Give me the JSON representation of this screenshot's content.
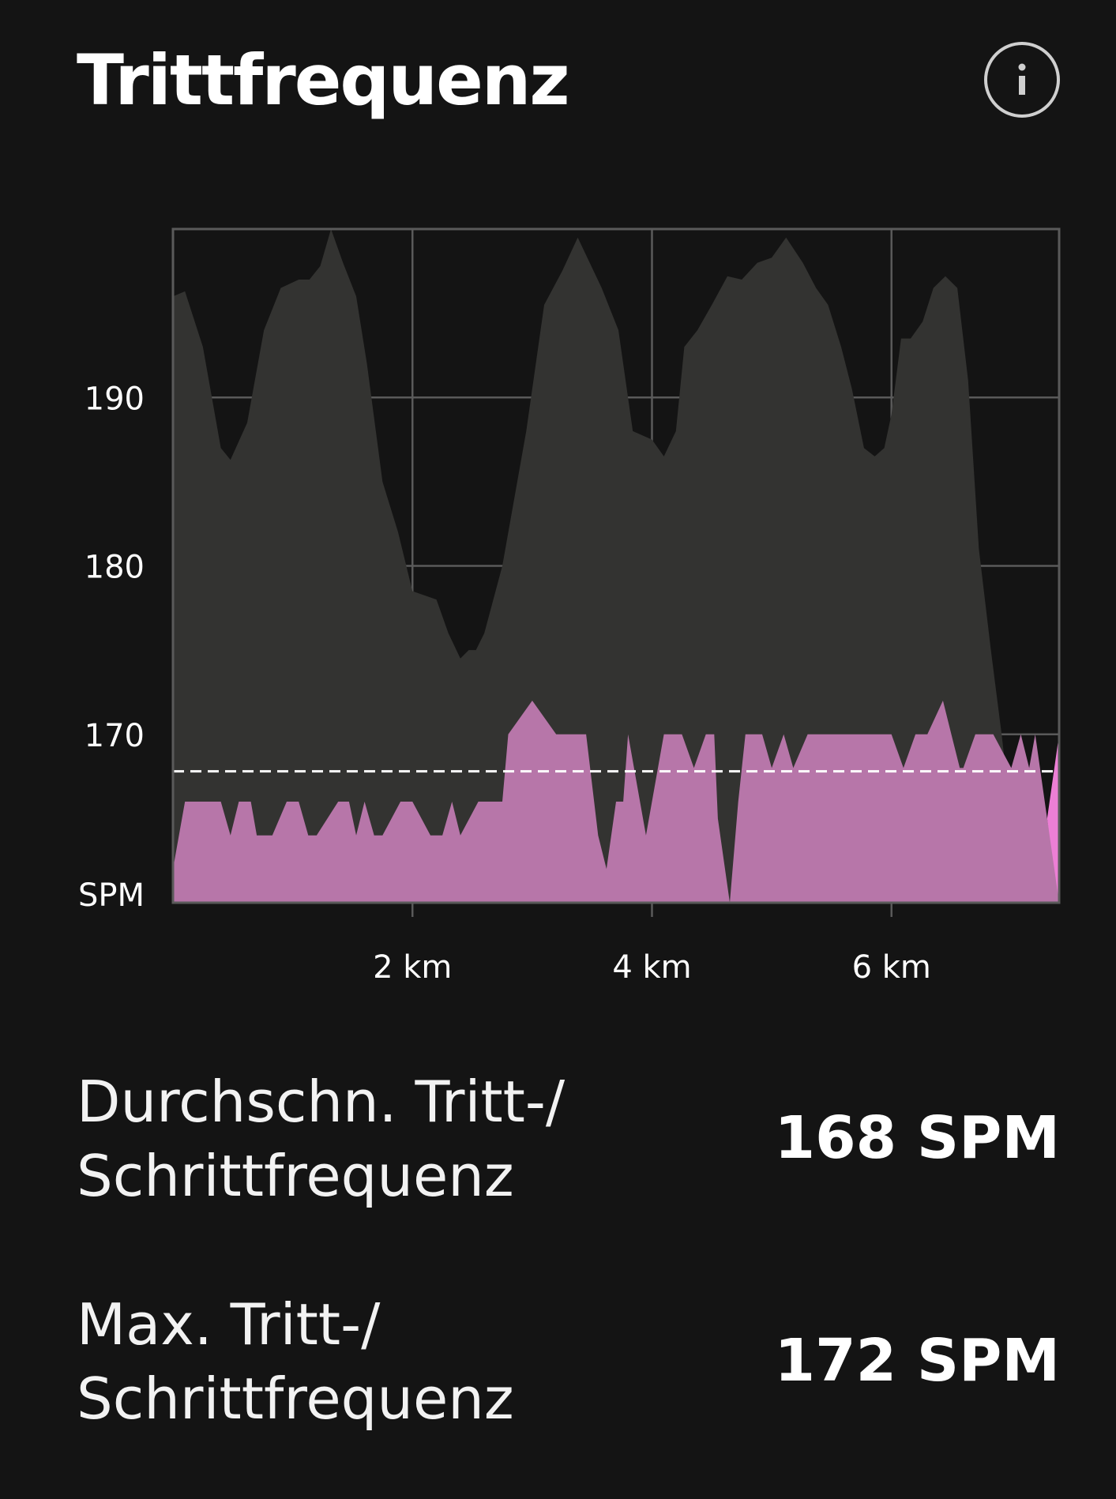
{
  "header": {
    "title": "Trittfrequenz",
    "info_icon": "info-icon"
  },
  "colors": {
    "background": "#141414",
    "area_gray": "#333331",
    "area_pink": "#b776a9",
    "area_pink_highlight": "#ec7fd5",
    "grid": "#5a5a5a",
    "text": "#ffffff"
  },
  "chart_data": {
    "type": "area",
    "x_unit": "km",
    "xlim": [
      0,
      7.4
    ],
    "ylim": [
      160,
      200
    ],
    "y_ticks": [
      190,
      180,
      170
    ],
    "y_tick_labels": [
      "190",
      "180",
      "170"
    ],
    "y_unit_label": "SPM",
    "x_ticks": [
      2,
      4,
      6
    ],
    "x_tick_labels": [
      "2 km",
      "4 km",
      "6 km"
    ],
    "average_line": 167.8,
    "grid": true,
    "series": [
      {
        "x": [
          0,
          0.1,
          0.25,
          0.4,
          0.48,
          0.62,
          0.76,
          0.9,
          1.05,
          1.14,
          1.23,
          1.32,
          1.42,
          1.53,
          1.62,
          1.75,
          1.88,
          2.0,
          2.2,
          2.3,
          2.4,
          2.47,
          2.53,
          2.6,
          2.75,
          2.95,
          3.1,
          3.25,
          3.38,
          3.58,
          3.72,
          3.84,
          4.0,
          4.1,
          4.2,
          4.27,
          4.38,
          4.5,
          4.63,
          4.75,
          4.88,
          5.0,
          5.12,
          5.26,
          5.37,
          5.47,
          5.58,
          5.67,
          5.77,
          5.86,
          5.94,
          6.0,
          6.08,
          6.16,
          6.26,
          6.35,
          6.45,
          6.55,
          6.64,
          6.73,
          6.83,
          6.92,
          7.0,
          7.12,
          7.2,
          7.3,
          7.4
        ],
        "values": [
          196,
          196.3,
          193,
          187,
          186.3,
          188.5,
          194,
          196.5,
          197,
          197,
          197.8,
          200,
          198,
          196,
          192,
          185,
          182,
          178.5,
          178,
          176,
          174.5,
          175,
          175,
          176,
          180,
          188,
          195.5,
          197.5,
          199.5,
          196.5,
          194,
          188,
          187.5,
          186.5,
          188,
          193,
          194,
          195.5,
          197.2,
          197,
          198,
          198.3,
          199.5,
          198,
          196.5,
          195.5,
          193,
          190.5,
          187,
          186.5,
          187,
          189,
          193.5,
          193.5,
          194.5,
          196.5,
          197.2,
          196.5,
          191,
          181,
          175,
          170,
          165,
          162,
          161,
          160.5,
          160
        ]
      },
      {
        "x": [
          0,
          0.1,
          0.4,
          0.48,
          0.55,
          0.65,
          0.7,
          0.83,
          0.95,
          1.05,
          1.13,
          1.2,
          1.38,
          1.47,
          1.53,
          1.6,
          1.68,
          1.75,
          1.9,
          2.0,
          2.15,
          2.25,
          2.33,
          2.4,
          2.55,
          2.62,
          2.67,
          2.75,
          2.8,
          3.0,
          3.2,
          3.38,
          3.45,
          3.55,
          3.62,
          3.7,
          3.76,
          3.8,
          3.9,
          3.95,
          4.1,
          4.2,
          4.25,
          4.35,
          4.45,
          4.52,
          4.55,
          4.65,
          4.72,
          4.78,
          4.92,
          5.0,
          5.1,
          5.18,
          5.3,
          5.6,
          5.9,
          6.0,
          6.1,
          6.2,
          6.3,
          6.43,
          6.5,
          6.57,
          6.6,
          6.7,
          6.85,
          7.0,
          7.08,
          7.15,
          7.2,
          7.3,
          7.37,
          7.4
        ],
        "values": [
          162,
          166,
          166,
          164,
          166,
          166,
          164,
          164,
          166,
          166,
          164,
          164,
          166,
          166,
          164,
          166,
          164,
          164,
          166,
          166,
          164,
          164,
          166,
          164,
          166,
          166,
          166,
          166,
          170,
          172,
          170,
          170,
          170,
          164,
          162,
          166,
          166,
          170,
          166,
          164,
          170,
          170,
          170,
          168,
          170,
          170,
          165,
          160,
          166,
          170,
          170,
          168,
          170,
          168,
          170,
          170,
          170,
          170,
          168,
          170,
          170,
          172,
          170,
          168,
          168,
          170,
          170,
          168,
          170,
          168,
          170,
          165,
          162,
          160
        ]
      }
    ]
  },
  "stats": [
    {
      "label_line1": "Durchschn. Tritt-/",
      "label_line2": "Schrittfrequenz",
      "value": "168 SPM"
    },
    {
      "label_line1": "Max. Tritt-/",
      "label_line2": "Schrittfrequenz",
      "value": "172 SPM"
    }
  ]
}
